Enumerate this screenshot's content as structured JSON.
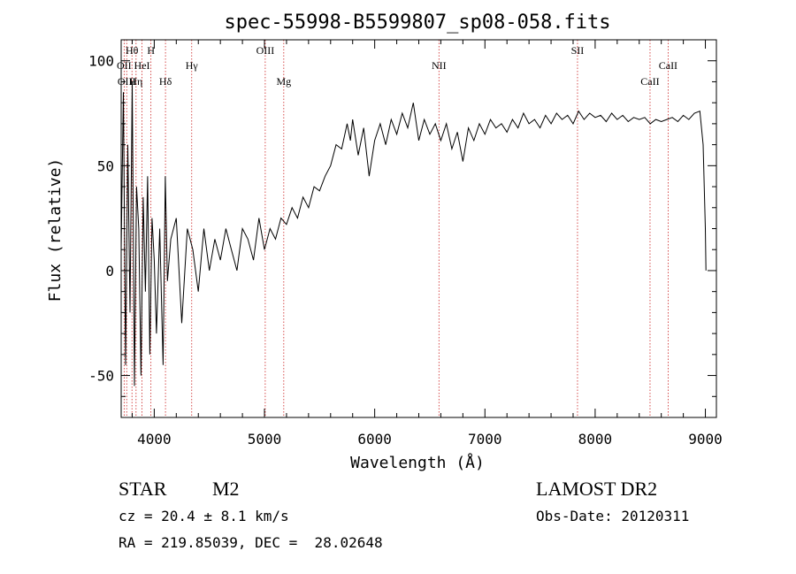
{
  "chart_data": {
    "type": "line",
    "title": "spec-55998-B5599807_sp08-058.fits",
    "xlabel": "Wavelength (Å)",
    "ylabel": "Flux (relative)",
    "xlim": [
      3700,
      9100
    ],
    "ylim": [
      -70,
      110
    ],
    "xticks": [
      4000,
      5000,
      6000,
      7000,
      8000,
      9000
    ],
    "yticks": [
      -50,
      0,
      50,
      100
    ],
    "grid": false,
    "line_color": "#000000",
    "series": [
      {
        "x": [
          3700,
          3720,
          3740,
          3760,
          3780,
          3800,
          3820,
          3840,
          3860,
          3880,
          3900,
          3920,
          3940,
          3960,
          3980,
          4000,
          4020,
          4050,
          4080,
          4100,
          4120,
          4150,
          4200,
          4250,
          4300,
          4350,
          4400,
          4450,
          4500,
          4550,
          4600,
          4650,
          4700,
          4750,
          4800,
          4850,
          4900,
          4950,
          5000,
          5050,
          5100,
          5150,
          5200,
          5250,
          5300,
          5350,
          5400,
          5450,
          5500,
          5550,
          5600,
          5650,
          5700,
          5750,
          5780,
          5800,
          5850,
          5900,
          5950,
          6000,
          6050,
          6100,
          6150,
          6200,
          6250,
          6300,
          6350,
          6400,
          6450,
          6500,
          6550,
          6600,
          6650,
          6700,
          6750,
          6800,
          6850,
          6900,
          6950,
          7000,
          7050,
          7100,
          7150,
          7200,
          7250,
          7300,
          7350,
          7400,
          7450,
          7500,
          7550,
          7600,
          7650,
          7700,
          7750,
          7800,
          7850,
          7900,
          7950,
          8000,
          8050,
          8100,
          8150,
          8200,
          8250,
          8300,
          8350,
          8400,
          8450,
          8500,
          8550,
          8600,
          8650,
          8700,
          8750,
          8800,
          8850,
          8900,
          8950,
          8980,
          9000,
          9005
        ],
        "values": [
          10,
          85,
          -45,
          60,
          -20,
          90,
          -55,
          40,
          20,
          -50,
          35,
          -10,
          45,
          -40,
          25,
          5,
          -30,
          20,
          -45,
          45,
          -5,
          15,
          25,
          -25,
          20,
          10,
          -10,
          20,
          0,
          15,
          5,
          20,
          10,
          0,
          20,
          15,
          5,
          25,
          10,
          20,
          15,
          25,
          22,
          30,
          25,
          35,
          30,
          40,
          38,
          45,
          50,
          60,
          58,
          70,
          62,
          72,
          55,
          68,
          45,
          62,
          70,
          60,
          72,
          65,
          75,
          68,
          80,
          62,
          72,
          65,
          70,
          62,
          70,
          58,
          66,
          52,
          68,
          62,
          70,
          65,
          72,
          68,
          70,
          66,
          72,
          68,
          75,
          70,
          72,
          68,
          74,
          70,
          75,
          72,
          74,
          70,
          76,
          72,
          75,
          73,
          74,
          71,
          75,
          72,
          74,
          71,
          73,
          72,
          73,
          70,
          72,
          71,
          72,
          73,
          71,
          74,
          72,
          75,
          76,
          60,
          20,
          0
        ]
      }
    ],
    "line_marks": [
      {
        "label": "Hθ",
        "x": 3798,
        "row": 1
      },
      {
        "label": "H",
        "x": 3970,
        "row": 1
      },
      {
        "label": "OII",
        "x": 3727,
        "row": 2
      },
      {
        "label": "HeI",
        "x": 3889,
        "row": 2
      },
      {
        "label": "Hγ",
        "x": 4340,
        "row": 2
      },
      {
        "label": "OIII",
        "x": 5007,
        "row": 1
      },
      {
        "label": "NII",
        "x": 6583,
        "row": 2
      },
      {
        "label": "SII",
        "x": 7840,
        "row": 1
      },
      {
        "label": "CaII",
        "x": 8662,
        "row": 2
      },
      {
        "label": "OIII",
        "x": 3750,
        "row": 3
      },
      {
        "label": "Hη",
        "x": 3835,
        "row": 3
      },
      {
        "label": "Hδ",
        "x": 4102,
        "row": 3
      },
      {
        "label": "Mg",
        "x": 5175,
        "row": 3
      },
      {
        "label": "CaII",
        "x": 8498,
        "row": 3
      }
    ]
  },
  "info": {
    "object_class": "STAR",
    "subclass": "M2",
    "survey": "LAMOST DR2",
    "cz_text": "cz = 20.4 ± 8.1 km/s",
    "obs_date_text": "Obs-Date: 20120311",
    "coords_text": "RA = 219.85039, DEC =  28.02648"
  }
}
